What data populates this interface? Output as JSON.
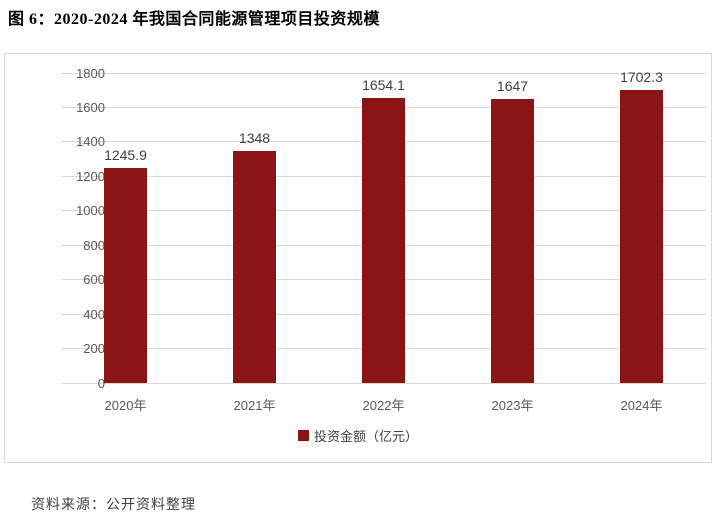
{
  "page": {
    "title": "图 6：2020-2024 年我国合同能源管理项目投资规模",
    "source": "资料来源：公开资料整理"
  },
  "chart_data": {
    "type": "bar",
    "title": "图 6：2020-2024 年我国合同能源管理项目投资规模",
    "categories": [
      "2020年",
      "2021年",
      "2022年",
      "2023年",
      "2024年"
    ],
    "values": [
      1245.9,
      1348,
      1654.1,
      1647,
      1702.3
    ],
    "value_labels": [
      "1245.9",
      "1348",
      "1654.1",
      "1647",
      "1702.3"
    ],
    "legend": "投资金额（亿元）",
    "legend_position": "bottom",
    "xlabel": "",
    "ylabel": "",
    "ylim": [
      0,
      1800
    ],
    "yticks": [
      0,
      200,
      400,
      600,
      800,
      1000,
      1200,
      1400,
      1600,
      1800
    ],
    "grid": true,
    "colors": {
      "bar": "#8b1414",
      "gridline": "#d9d9d9",
      "axis_text": "#595959",
      "value_text": "#404040"
    }
  }
}
